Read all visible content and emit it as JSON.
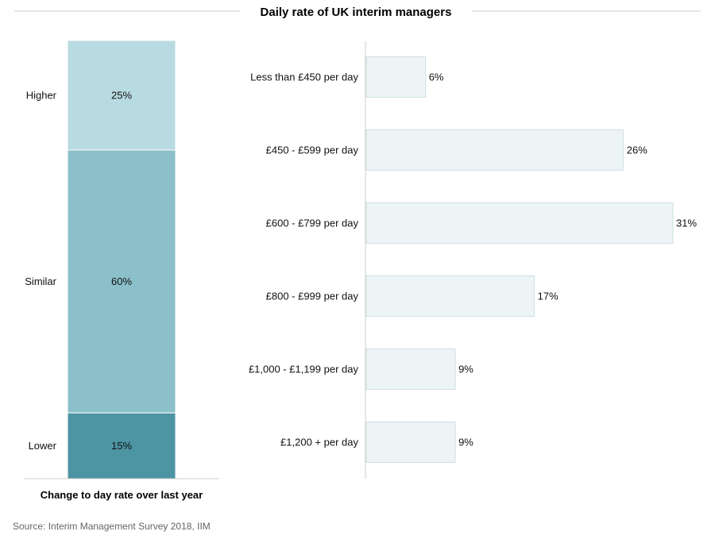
{
  "chart_data": [
    {
      "type": "bar",
      "orientation": "vertical-stacked",
      "title": "",
      "xlabel": "Change to day rate over last year",
      "categories": [
        "Higher",
        "Similar",
        "Lower"
      ],
      "values": [
        25,
        60,
        15
      ],
      "value_labels": [
        "25%",
        "60%",
        "15%"
      ],
      "colors": [
        "#b8dbe2",
        "#8bc0ca",
        "#4d95a3"
      ],
      "ylim": [
        0,
        100
      ]
    },
    {
      "type": "bar",
      "orientation": "horizontal",
      "title": "Daily rate of UK interim managers",
      "categories": [
        "Less than £450 per day",
        "£450 - £599 per day",
        "£600 - £799 per day",
        "£800 - £999 per day",
        "£1,000 - £1,199 per day",
        "£1,200 + per day"
      ],
      "values": [
        6,
        26,
        31,
        17,
        9,
        9
      ],
      "value_labels": [
        "6%",
        "26%",
        "31%",
        "17%",
        "9%",
        "9%"
      ],
      "color": "#edf4f5",
      "border_color": "#cfe0e3",
      "xlim": [
        0,
        31
      ]
    }
  ],
  "source": "Source: Interim Management Survey 2018, IIM",
  "colors": {
    "rule": "#cccccc",
    "axis": "#cccccc",
    "label_light": "#ffffff"
  }
}
